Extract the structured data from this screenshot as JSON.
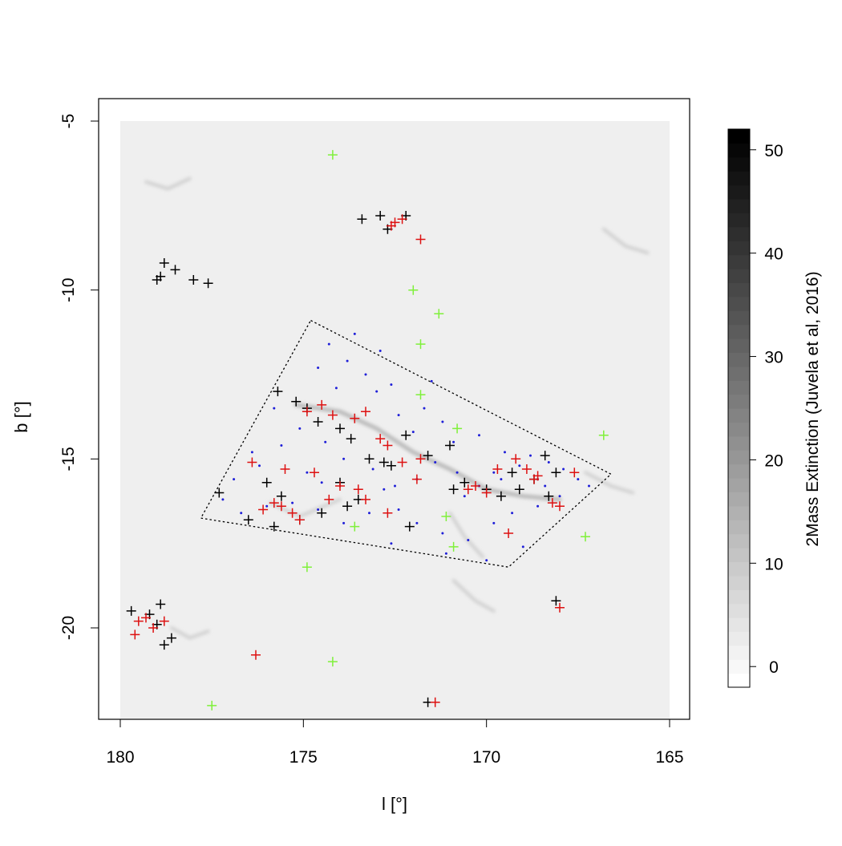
{
  "chart_data": {
    "type": "scatter",
    "title": "",
    "xlabel": "l [°]",
    "ylabel": "b [°]",
    "xlim": [
      180,
      165
    ],
    "ylim": [
      -22.5,
      -5
    ],
    "x_ticks": [
      "180",
      "175",
      "170",
      "165"
    ],
    "y_ticks": [
      "-5",
      "-10",
      "-15",
      "-20"
    ],
    "grid": false,
    "legend": "none",
    "background": {
      "type": "extinction-map",
      "colorbar_label": "2Mass Extinction (Juvela et al, 2016)",
      "colorbar_range": [
        -2,
        52
      ],
      "colorbar_ticks": [
        "0",
        "10",
        "20",
        "30",
        "40",
        "50"
      ],
      "color_low": "#ffffff",
      "color_high": "#000000",
      "map_color": "#efefef",
      "filaments": [
        [
          [
            175.2,
            -13.4
          ],
          [
            174.0,
            -13.6
          ],
          [
            173.0,
            -14.1
          ],
          [
            172.0,
            -14.8
          ],
          [
            171.0,
            -15.3
          ],
          [
            170.0,
            -15.9
          ],
          [
            169.0,
            -16.1
          ],
          [
            168.0,
            -16.2
          ]
        ],
        [
          [
            175.9,
            -16.3
          ],
          [
            175.1,
            -16.7
          ],
          [
            174.0,
            -16.2
          ]
        ],
        [
          [
            171.0,
            -16.6
          ],
          [
            170.6,
            -17.3
          ],
          [
            170.1,
            -17.9
          ]
        ],
        [
          [
            170.9,
            -18.6
          ],
          [
            170.3,
            -19.2
          ],
          [
            169.8,
            -19.5
          ]
        ],
        [
          [
            179.3,
            -6.8
          ],
          [
            178.7,
            -7.0
          ],
          [
            178.1,
            -6.7
          ]
        ],
        [
          [
            178.6,
            -20.0
          ],
          [
            178.1,
            -20.3
          ],
          [
            177.6,
            -20.1
          ]
        ],
        [
          [
            166.8,
            -8.2
          ],
          [
            166.2,
            -8.7
          ],
          [
            165.6,
            -8.9
          ]
        ],
        [
          [
            167.3,
            -15.4
          ],
          [
            166.6,
            -15.8
          ],
          [
            166.0,
            -16.0
          ]
        ]
      ]
    },
    "polygon": {
      "style": "dotted",
      "vertices": [
        [
          174.8,
          -10.9
        ],
        [
          166.6,
          -15.45
        ],
        [
          169.4,
          -18.2
        ],
        [
          177.8,
          -16.75
        ]
      ]
    },
    "series": [
      {
        "marker": "dot",
        "color": "#1f1fd8",
        "points": [
          [
            174.3,
            -11.6
          ],
          [
            173.8,
            -12.1
          ],
          [
            172.9,
            -11.8
          ],
          [
            173.3,
            -12.5
          ],
          [
            174.6,
            -12.3
          ],
          [
            173.0,
            -13.0
          ],
          [
            172.6,
            -12.8
          ],
          [
            174.1,
            -12.9
          ],
          [
            172.4,
            -13.7
          ],
          [
            171.7,
            -13.5
          ],
          [
            171.2,
            -13.9
          ],
          [
            170.9,
            -14.5
          ],
          [
            170.2,
            -14.3
          ],
          [
            169.5,
            -14.8
          ],
          [
            169.8,
            -15.4
          ],
          [
            168.8,
            -14.9
          ],
          [
            168.3,
            -15.1
          ],
          [
            167.9,
            -15.3
          ],
          [
            167.5,
            -15.6
          ],
          [
            167.2,
            -15.8
          ],
          [
            168.0,
            -16.1
          ],
          [
            168.6,
            -16.4
          ],
          [
            169.3,
            -16.6
          ],
          [
            169.8,
            -16.9
          ],
          [
            170.5,
            -17.4
          ],
          [
            171.2,
            -17.2
          ],
          [
            171.9,
            -16.9
          ],
          [
            172.4,
            -16.5
          ],
          [
            173.2,
            -16.6
          ],
          [
            173.9,
            -16.9
          ],
          [
            174.6,
            -16.5
          ],
          [
            175.3,
            -16.3
          ],
          [
            176.0,
            -16.4
          ],
          [
            176.7,
            -16.6
          ],
          [
            177.2,
            -16.2
          ],
          [
            176.9,
            -15.6
          ],
          [
            176.2,
            -15.2
          ],
          [
            175.6,
            -14.6
          ],
          [
            175.1,
            -14.1
          ],
          [
            174.4,
            -14.5
          ],
          [
            173.9,
            -15.0
          ],
          [
            173.1,
            -15.3
          ],
          [
            172.5,
            -15.8
          ],
          [
            171.9,
            -15.6
          ],
          [
            171.4,
            -15.1
          ],
          [
            170.8,
            -15.4
          ],
          [
            170.2,
            -15.8
          ],
          [
            169.6,
            -15.6
          ],
          [
            169.1,
            -15.2
          ],
          [
            168.6,
            -15.6
          ],
          [
            169.0,
            -17.6
          ],
          [
            170.0,
            -18.0
          ],
          [
            171.1,
            -17.8
          ],
          [
            172.6,
            -17.5
          ],
          [
            174.9,
            -15.4
          ],
          [
            176.4,
            -14.8
          ],
          [
            175.8,
            -13.5
          ],
          [
            172.0,
            -14.2
          ],
          [
            170.6,
            -16.1
          ],
          [
            168.4,
            -15.8
          ],
          [
            171.5,
            -12.7
          ],
          [
            173.6,
            -11.3
          ],
          [
            174.5,
            -15.7
          ],
          [
            172.8,
            -15.9
          ]
        ]
      },
      {
        "marker": "plus",
        "color": "#000000",
        "points": [
          [
            173.4,
            -7.9
          ],
          [
            172.9,
            -7.8
          ],
          [
            172.7,
            -8.2
          ],
          [
            172.2,
            -7.8
          ],
          [
            178.8,
            -9.2
          ],
          [
            178.9,
            -9.6
          ],
          [
            178.5,
            -9.4
          ],
          [
            179.0,
            -9.7
          ],
          [
            177.6,
            -9.8
          ],
          [
            178.0,
            -9.7
          ],
          [
            175.7,
            -13.0
          ],
          [
            175.2,
            -13.3
          ],
          [
            174.9,
            -13.5
          ],
          [
            174.6,
            -13.9
          ],
          [
            174.0,
            -14.1
          ],
          [
            173.7,
            -14.4
          ],
          [
            173.2,
            -15.0
          ],
          [
            172.6,
            -15.2
          ],
          [
            172.2,
            -14.3
          ],
          [
            171.6,
            -14.9
          ],
          [
            171.0,
            -14.6
          ],
          [
            170.6,
            -15.7
          ],
          [
            170.0,
            -15.9
          ],
          [
            169.6,
            -16.1
          ],
          [
            169.1,
            -15.9
          ],
          [
            168.7,
            -15.6
          ],
          [
            168.4,
            -14.9
          ],
          [
            168.3,
            -16.1
          ],
          [
            168.1,
            -15.4
          ],
          [
            176.0,
            -15.7
          ],
          [
            175.6,
            -16.1
          ],
          [
            175.1,
            -16.8
          ],
          [
            174.5,
            -16.6
          ],
          [
            174.0,
            -15.7
          ],
          [
            173.5,
            -16.2
          ],
          [
            173.8,
            -16.4
          ],
          [
            172.8,
            -15.1
          ],
          [
            172.1,
            -17.0
          ],
          [
            176.5,
            -16.8
          ],
          [
            177.3,
            -16.0
          ],
          [
            179.7,
            -19.5
          ],
          [
            179.2,
            -19.6
          ],
          [
            178.9,
            -19.3
          ],
          [
            178.8,
            -20.5
          ],
          [
            178.6,
            -20.3
          ],
          [
            179.0,
            -19.9
          ],
          [
            168.1,
            -19.2
          ],
          [
            171.6,
            -22.2
          ],
          [
            175.8,
            -17.0
          ],
          [
            170.9,
            -15.9
          ],
          [
            169.3,
            -15.4
          ]
        ]
      },
      {
        "marker": "plus",
        "color": "#dd1111",
        "points": [
          [
            172.5,
            -8.0
          ],
          [
            172.3,
            -7.9
          ],
          [
            172.6,
            -8.1
          ],
          [
            171.8,
            -8.5
          ],
          [
            174.9,
            -13.6
          ],
          [
            174.5,
            -13.4
          ],
          [
            174.2,
            -13.7
          ],
          [
            173.6,
            -13.8
          ],
          [
            173.3,
            -13.6
          ],
          [
            172.9,
            -14.4
          ],
          [
            172.7,
            -14.6
          ],
          [
            172.3,
            -15.1
          ],
          [
            171.8,
            -15.0
          ],
          [
            170.5,
            -15.9
          ],
          [
            170.3,
            -15.8
          ],
          [
            170.0,
            -16.0
          ],
          [
            169.7,
            -15.3
          ],
          [
            169.2,
            -15.0
          ],
          [
            168.9,
            -15.3
          ],
          [
            168.7,
            -15.6
          ],
          [
            168.6,
            -15.5
          ],
          [
            168.2,
            -16.3
          ],
          [
            168.0,
            -16.4
          ],
          [
            167.6,
            -15.4
          ],
          [
            176.4,
            -15.1
          ],
          [
            175.5,
            -15.3
          ],
          [
            174.7,
            -15.4
          ],
          [
            174.0,
            -15.8
          ],
          [
            173.5,
            -15.9
          ],
          [
            173.3,
            -16.2
          ],
          [
            172.7,
            -16.6
          ],
          [
            171.9,
            -15.6
          ],
          [
            175.8,
            -16.3
          ],
          [
            175.6,
            -16.4
          ],
          [
            175.3,
            -16.6
          ],
          [
            175.1,
            -16.8
          ],
          [
            176.1,
            -16.5
          ],
          [
            179.5,
            -19.8
          ],
          [
            179.3,
            -19.7
          ],
          [
            179.1,
            -20.0
          ],
          [
            178.8,
            -19.8
          ],
          [
            179.6,
            -20.2
          ],
          [
            176.3,
            -20.8
          ],
          [
            168.0,
            -19.4
          ],
          [
            171.4,
            -22.2
          ],
          [
            169.4,
            -17.2
          ],
          [
            174.3,
            -16.2
          ]
        ]
      },
      {
        "marker": "plus",
        "color": "#7ff03a",
        "points": [
          [
            174.2,
            -6.0
          ],
          [
            172.0,
            -10.0
          ],
          [
            171.3,
            -10.7
          ],
          [
            171.8,
            -11.6
          ],
          [
            171.8,
            -13.1
          ],
          [
            170.8,
            -14.1
          ],
          [
            166.8,
            -14.3
          ],
          [
            167.3,
            -17.3
          ],
          [
            171.1,
            -16.7
          ],
          [
            170.9,
            -17.6
          ],
          [
            173.6,
            -17.0
          ],
          [
            174.9,
            -18.2
          ],
          [
            174.2,
            -21.0
          ],
          [
            177.5,
            -22.3
          ]
        ]
      }
    ]
  }
}
